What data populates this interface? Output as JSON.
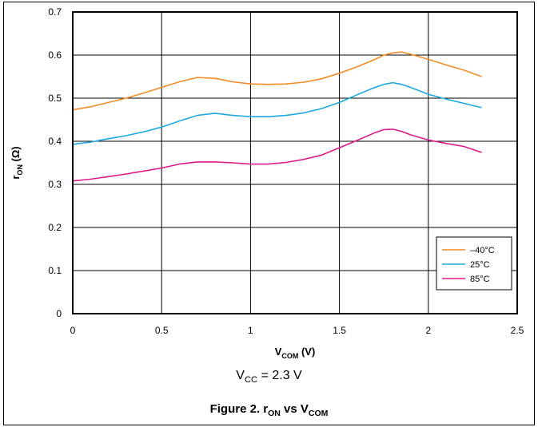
{
  "chart_data": {
    "type": "line",
    "xlabel": {
      "main": "V",
      "sub": "COM",
      "unit": " (V)"
    },
    "ylabel": {
      "main": "r",
      "sub": "ON",
      "unit": " (Ω)"
    },
    "xlim": [
      0,
      2.5
    ],
    "ylim": [
      0,
      0.7
    ],
    "xticks": [
      0,
      0.5,
      1,
      1.5,
      2,
      2.5
    ],
    "xtick_labels": [
      "0",
      "0.5",
      "1",
      "1.5",
      "2",
      "2.5"
    ],
    "yticks": [
      0,
      0.1,
      0.2,
      0.3,
      0.4,
      0.5,
      0.6,
      0.7
    ],
    "ytick_labels": [
      "0",
      "0.1",
      "0.2",
      "0.3",
      "0.4",
      "0.5",
      "0.6",
      "0.7"
    ],
    "grid": true,
    "legend_position": "bottom-right",
    "series": [
      {
        "name": "–40°C",
        "color": "#F28C28",
        "x": [
          0,
          0.1,
          0.2,
          0.3,
          0.4,
          0.5,
          0.6,
          0.7,
          0.8,
          0.9,
          1.0,
          1.1,
          1.2,
          1.3,
          1.4,
          1.5,
          1.6,
          1.7,
          1.75,
          1.8,
          1.85,
          1.9,
          2.0,
          2.1,
          2.2,
          2.3
        ],
        "y": [
          0.473,
          0.48,
          0.49,
          0.5,
          0.512,
          0.525,
          0.538,
          0.548,
          0.546,
          0.538,
          0.533,
          0.532,
          0.533,
          0.537,
          0.545,
          0.558,
          0.573,
          0.59,
          0.6,
          0.605,
          0.607,
          0.602,
          0.59,
          0.577,
          0.565,
          0.55
        ]
      },
      {
        "name": "25°C",
        "color": "#1BA9E0",
        "x": [
          0,
          0.1,
          0.2,
          0.3,
          0.4,
          0.5,
          0.6,
          0.7,
          0.8,
          0.9,
          1.0,
          1.1,
          1.2,
          1.3,
          1.4,
          1.5,
          1.6,
          1.7,
          1.75,
          1.8,
          1.85,
          1.9,
          2.0,
          2.1,
          2.2,
          2.3
        ],
        "y": [
          0.393,
          0.398,
          0.406,
          0.413,
          0.422,
          0.433,
          0.447,
          0.46,
          0.465,
          0.46,
          0.457,
          0.457,
          0.46,
          0.466,
          0.476,
          0.49,
          0.508,
          0.525,
          0.532,
          0.536,
          0.532,
          0.525,
          0.509,
          0.498,
          0.488,
          0.478
        ]
      },
      {
        "name": "85°C",
        "color": "#E0198A",
        "x": [
          0,
          0.1,
          0.2,
          0.3,
          0.4,
          0.5,
          0.6,
          0.7,
          0.8,
          0.9,
          1.0,
          1.1,
          1.2,
          1.3,
          1.4,
          1.5,
          1.6,
          1.7,
          1.75,
          1.8,
          1.85,
          1.9,
          2.0,
          2.1,
          2.2,
          2.3
        ],
        "y": [
          0.308,
          0.312,
          0.318,
          0.324,
          0.331,
          0.338,
          0.347,
          0.352,
          0.352,
          0.35,
          0.347,
          0.347,
          0.351,
          0.358,
          0.368,
          0.385,
          0.402,
          0.42,
          0.427,
          0.428,
          0.423,
          0.415,
          0.403,
          0.395,
          0.388,
          0.374
        ]
      }
    ]
  },
  "conditions": {
    "main": "V",
    "sub": "CC",
    "rest": " = 2.3 V"
  },
  "figure_caption": {
    "prefix": "Figure 2. r",
    "sub1": "ON",
    "mid": " vs V",
    "sub2": "COM"
  }
}
